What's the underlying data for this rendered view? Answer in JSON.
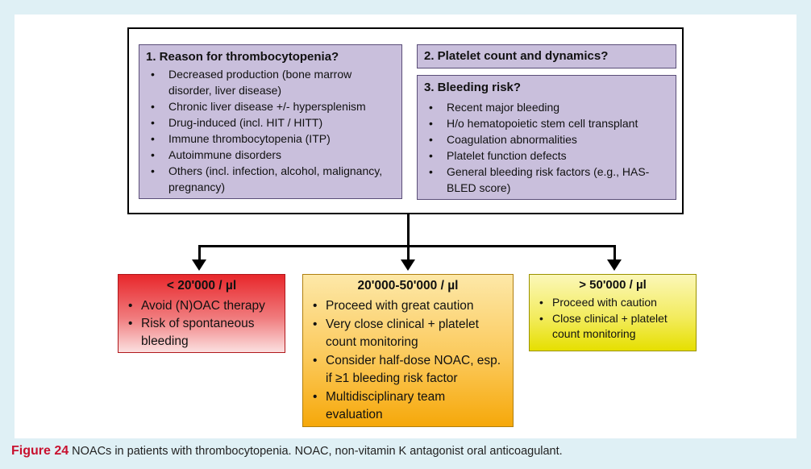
{
  "box1": {
    "title": "1. Reason for thrombocytopenia?",
    "items": [
      "Decreased production (bone marrow disorder, liver disease)",
      "Chronic liver disease +/- hypersplenism",
      "Drug-induced (incl. HIT / HITT)",
      "Immune thrombocytopenia (ITP)",
      "Autoimmune disorders",
      "Others (incl. infection, alcohol, malignancy, pregnancy)"
    ]
  },
  "box2": {
    "title": "2. Platelet count and dynamics?"
  },
  "box3": {
    "title": "3. Bleeding risk?",
    "items": [
      "Recent major bleeding",
      "H/o hematopoietic stem cell transplant",
      "Coagulation abnormalities",
      "Platelet function defects",
      "General bleeding risk factors (e.g., HAS-BLED score)"
    ]
  },
  "outcomes": [
    {
      "title": "< 20'000 / µl",
      "color": "#e8272b",
      "items": [
        "Avoid (N)OAC therapy",
        "Risk of spontaneous bleeding"
      ]
    },
    {
      "title": "20'000-50'000 / µl",
      "color": "#f6a80a",
      "items": [
        "Proceed with great caution",
        "Very close clinical + platelet count monitoring",
        "Consider half-dose NOAC, esp. if ≥1 bleeding risk factor",
        "Multidisciplinary team evaluation"
      ]
    },
    {
      "title": "> 50'000 / µl",
      "color": "#e6df00",
      "items": [
        "Proceed with caution",
        "Close clinical + platelet count monitoring"
      ]
    }
  ],
  "caption": {
    "label": "Figure 24",
    "text": " NOACs in patients with thrombocytopenia. NOAC, non-vitamin K antagonist oral anticoagulant."
  }
}
